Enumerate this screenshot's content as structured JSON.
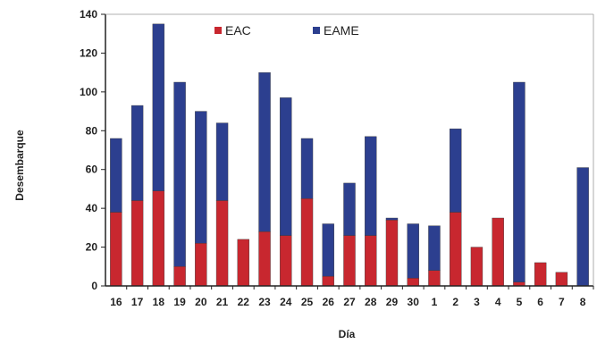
{
  "chart_data": {
    "type": "bar",
    "stacked": true,
    "title": "",
    "xlabel": "Día",
    "ylabel": "Desembarque",
    "ylim": [
      0,
      140
    ],
    "yticks": [
      0,
      20,
      40,
      60,
      80,
      100,
      120,
      140
    ],
    "grid": false,
    "legend_position": "top-left",
    "categories": [
      "16",
      "17",
      "18",
      "19",
      "20",
      "21",
      "22",
      "23",
      "24",
      "25",
      "26",
      "27",
      "28",
      "29",
      "30",
      "1",
      "2",
      "3",
      "4",
      "5",
      "6",
      "7",
      "8"
    ],
    "series": [
      {
        "name": "EAC",
        "color": "#c8272f",
        "values": [
          38,
          44,
          49,
          10,
          22,
          44,
          24,
          28,
          26,
          45,
          5,
          26,
          26,
          34,
          4,
          8,
          38,
          20,
          35,
          2,
          12,
          7,
          0
        ]
      },
      {
        "name": "EAME",
        "color": "#2c3f8f",
        "values": [
          38,
          49,
          86,
          95,
          68,
          40,
          0,
          82,
          71,
          31,
          27,
          27,
          51,
          1,
          28,
          23,
          43,
          0,
          0,
          103,
          0,
          0,
          61
        ]
      }
    ]
  }
}
